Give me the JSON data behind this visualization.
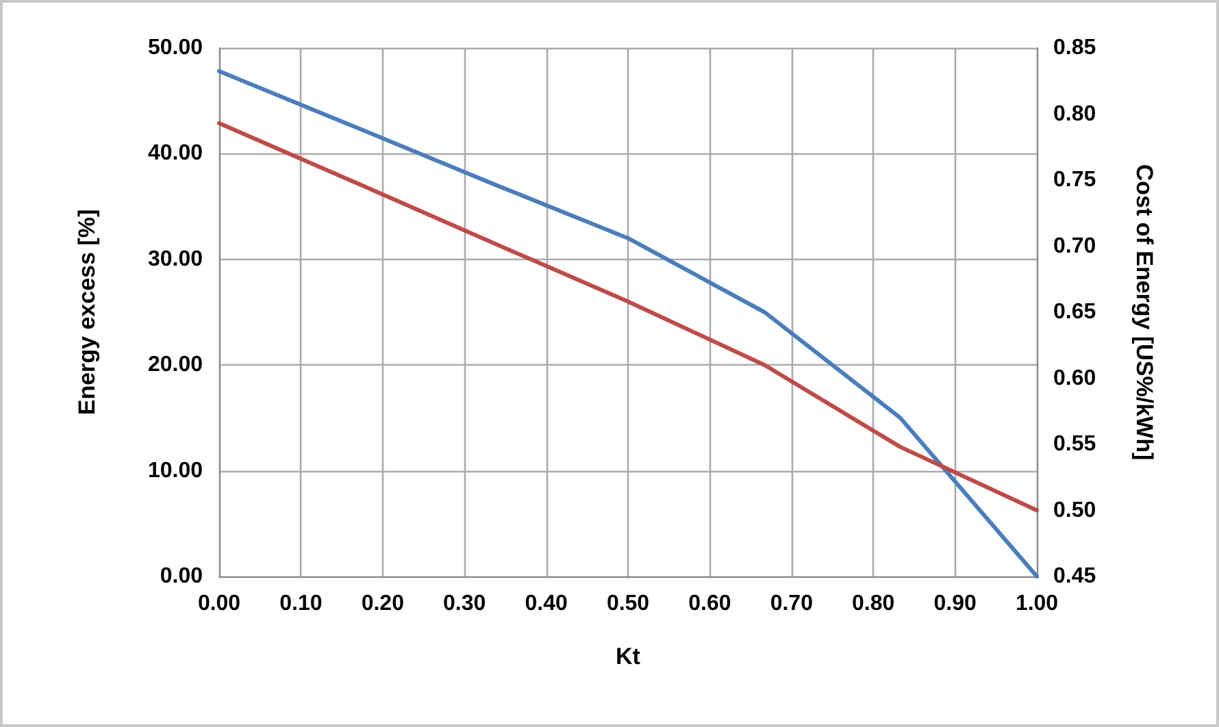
{
  "chart_data": {
    "type": "line",
    "xlabel": "Kt",
    "ylabel": "Energy excess [%]",
    "y2label": "Cost of Energy [US%/kWh]",
    "x": [
      0,
      0.167,
      0.333,
      0.5,
      0.667,
      0.833,
      1.0
    ],
    "series": [
      {
        "color": "#4a7ebb",
        "values": [
          47.8,
          42.5,
          37.2,
          32.0,
          25.0,
          15.0,
          0.0
        ]
      },
      {
        "color": "#be4b48",
        "axis": "y2",
        "values": [
          0.793,
          0.748,
          0.703,
          0.658,
          0.61,
          0.548,
          0.5
        ]
      }
    ],
    "xlim": [
      0,
      1
    ],
    "xticks": [
      {
        "value": 0,
        "label": "0.00"
      },
      {
        "value": 0.1,
        "label": "0.10"
      },
      {
        "value": 0.2,
        "label": "0.20"
      },
      {
        "value": 0.3,
        "label": "0.30"
      },
      {
        "value": 0.4,
        "label": "0.40"
      },
      {
        "value": 0.5,
        "label": "0.50"
      },
      {
        "value": 0.6,
        "label": "0.60"
      },
      {
        "value": 0.7,
        "label": "0.70"
      },
      {
        "value": 0.8,
        "label": "0.80"
      },
      {
        "value": 0.9,
        "label": "0.90"
      },
      {
        "value": 1,
        "label": "1.00"
      }
    ],
    "ylim": [
      0,
      50
    ],
    "yticks": [
      {
        "value": 0,
        "label": "0.00"
      },
      {
        "value": 10,
        "label": "10.00"
      },
      {
        "value": 20,
        "label": "20.00"
      },
      {
        "value": 30,
        "label": "30.00"
      },
      {
        "value": 40,
        "label": "40.00"
      },
      {
        "value": 50,
        "label": "50.00"
      }
    ],
    "y2lim": [
      0.45,
      0.85
    ],
    "y2ticks": [
      0.45,
      {
        "value": 0.5,
        "label": "0.50"
      },
      0.55,
      {
        "value": 0.6,
        "label": "0.60"
      },
      0.65,
      {
        "value": 0.7,
        "label": "0.70"
      },
      0.75,
      {
        "value": 0.8,
        "label": "0.80"
      },
      0.85
    ],
    "grid": true,
    "marker": "none",
    "line_style": "solid"
  }
}
